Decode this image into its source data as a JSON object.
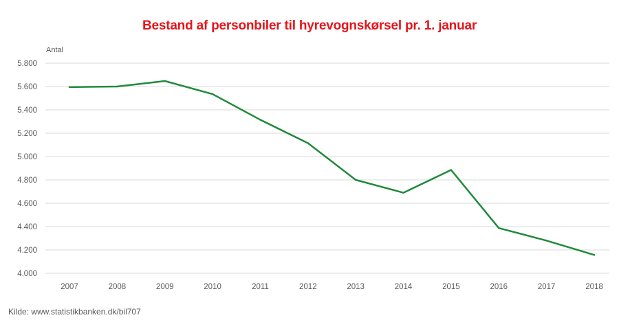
{
  "chart_data": {
    "type": "line",
    "title": "Bestand af personbiler til hyrevognskørsel pr. 1. januar",
    "ylabel": "Antal",
    "xlabel": "",
    "x": [
      "2007",
      "2008",
      "2009",
      "2010",
      "2011",
      "2012",
      "2013",
      "2014",
      "2015",
      "2016",
      "2017",
      "2018"
    ],
    "series": [
      {
        "values": [
          5595,
          5600,
          5647,
          5535,
          5315,
          5115,
          4800,
          4690,
          4885,
          4387,
          4280,
          4157
        ]
      }
    ],
    "ylim": [
      4000,
      5800
    ],
    "yticks": [
      4000,
      4200,
      4400,
      4600,
      4800,
      5000,
      5200,
      5400,
      5600,
      5800
    ],
    "ytick_labels": [
      "4.000",
      "4.200",
      "4.400",
      "4.600",
      "4.800",
      "5.000",
      "5.200",
      "5.400",
      "5.600",
      "5.800"
    ],
    "grid": "horizontal",
    "line_color": "#1f8a3b",
    "grid_color": "#d9d9d9",
    "title_color": "#e8141b",
    "source": "Kilde: www.statistikbanken.dk/bil707"
  }
}
